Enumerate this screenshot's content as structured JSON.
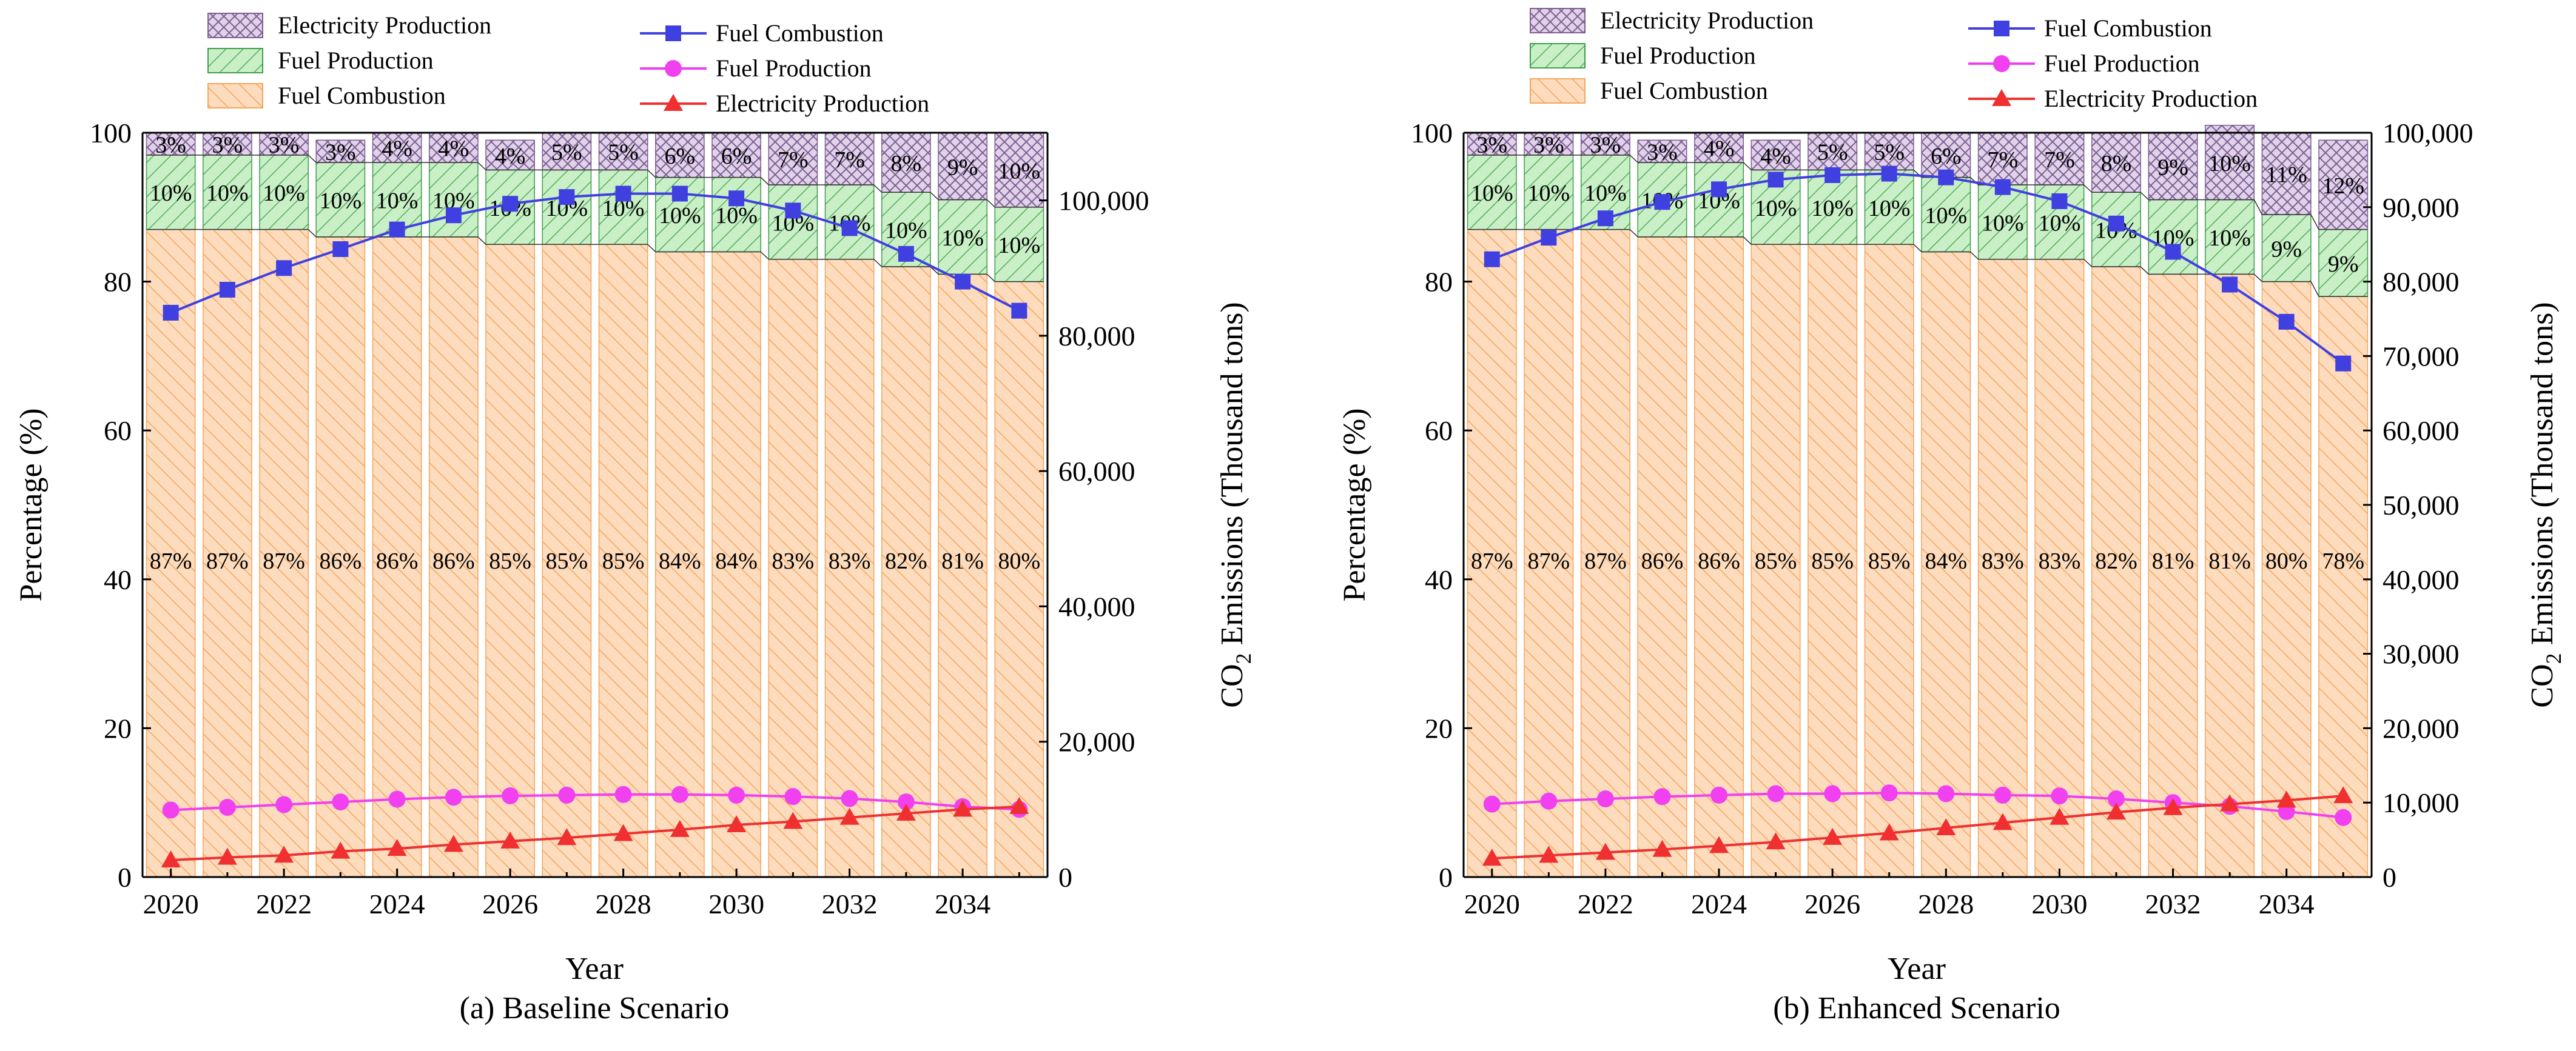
{
  "legend": {
    "bars": [
      "Electricity Production",
      "Fuel Production",
      "Fuel Combustion"
    ],
    "lines": [
      "Fuel Combustion",
      "Fuel Production",
      "Electricity Production"
    ]
  },
  "colors": {
    "combustion_bar": "#FDDCBD",
    "combustion_hatch": "#F5A55E",
    "fuelprod_bar": "#C9EFC6",
    "fuelprod_hatch": "#3E9E4A",
    "elec_bar": "#E0D2E9",
    "elec_hatch": "#7D5E93",
    "combustion_line": "#4040E0",
    "fuelprod_line": "#F040F0",
    "elec_line": "#F03030",
    "bar_edge": "#000000"
  },
  "chart_data": [
    {
      "type": "bar",
      "title": "(a) Baseline Scenario",
      "xlabel": "Year",
      "ylabel": "Percentage (%)",
      "y2label_pre": "CO",
      "y2label_sub": "2",
      "y2label_post": " Emissions (Thousand tons)",
      "ylim": [
        0,
        100
      ],
      "y2lim": [
        0,
        110000
      ],
      "yticks": [
        0,
        20,
        40,
        60,
        80,
        100
      ],
      "y2ticks": [
        0,
        20000,
        40000,
        60000,
        80000,
        100000
      ],
      "y2tick_labels": [
        "0",
        "20,000",
        "40,000",
        "60,000",
        "80,000",
        "100,000"
      ],
      "xtick_labels": [
        "2020",
        "2022",
        "2024",
        "2026",
        "2028",
        "2030",
        "2032",
        "2034"
      ],
      "categories": [
        2020,
        2021,
        2022,
        2023,
        2024,
        2025,
        2026,
        2027,
        2028,
        2029,
        2030,
        2031,
        2032,
        2033,
        2034,
        2035
      ],
      "stacked_percent": [
        {
          "name": "Fuel Combustion",
          "values": [
            87,
            87,
            87,
            86,
            86,
            86,
            85,
            85,
            85,
            84,
            84,
            83,
            83,
            82,
            81,
            80
          ],
          "labels": [
            "87%",
            "87%",
            "87%",
            "86%",
            "86%",
            "86%",
            "85%",
            "85%",
            "85%",
            "84%",
            "84%",
            "83%",
            "83%",
            "82%",
            "81%",
            "80%"
          ]
        },
        {
          "name": "Fuel Production",
          "values": [
            10,
            10,
            10,
            10,
            10,
            10,
            10,
            10,
            10,
            10,
            10,
            10,
            10,
            10,
            10,
            10
          ],
          "labels": [
            "10%",
            "10%",
            "10%",
            "10%",
            "10%",
            "10%",
            "10%",
            "10%",
            "10%",
            "10%",
            "10%",
            "10%",
            "10%",
            "10%",
            "10%",
            "10%"
          ]
        },
        {
          "name": "Electricity Production",
          "values": [
            3,
            3,
            3,
            3,
            4,
            4,
            4,
            5,
            5,
            6,
            6,
            7,
            7,
            8,
            9,
            10
          ],
          "labels": [
            "3%",
            "3%",
            "3%",
            "3%",
            "4%",
            "4%",
            "4%",
            "5%",
            "5%",
            "6%",
            "6%",
            "7%",
            "7%",
            "8%",
            "9%",
            "10%"
          ]
        }
      ],
      "series": [
        {
          "name": "Fuel Combustion",
          "marker": "square",
          "values": [
            83400,
            86800,
            90000,
            92800,
            95700,
            97800,
            99500,
            100500,
            101000,
            101000,
            100300,
            98500,
            95900,
            92100,
            88000,
            83700
          ]
        },
        {
          "name": "Fuel Production",
          "marker": "circle",
          "values": [
            9900,
            10300,
            10700,
            11100,
            11500,
            11800,
            12000,
            12100,
            12200,
            12200,
            12100,
            11900,
            11600,
            11100,
            10400,
            10000
          ]
        },
        {
          "name": "Electricity Production",
          "marker": "triangle",
          "values": [
            2500,
            2900,
            3200,
            3800,
            4200,
            4800,
            5300,
            5800,
            6400,
            7000,
            7700,
            8200,
            8800,
            9400,
            10000,
            10400
          ]
        }
      ]
    },
    {
      "type": "bar",
      "title": "(b) Enhanced Scenario",
      "xlabel": "Year",
      "ylabel": "Percentage (%)",
      "y2label_pre": "CO",
      "y2label_sub": "2",
      "y2label_post": " Emissions (Thousand tons)",
      "ylim": [
        0,
        100
      ],
      "y2lim": [
        0,
        100000
      ],
      "yticks": [
        0,
        20,
        40,
        60,
        80,
        100
      ],
      "y2ticks": [
        0,
        10000,
        20000,
        30000,
        40000,
        50000,
        60000,
        70000,
        80000,
        90000,
        100000
      ],
      "y2tick_labels": [
        "0",
        "10,000",
        "20,000",
        "30,000",
        "40,000",
        "50,000",
        "60,000",
        "70,000",
        "80,000",
        "90,000",
        "100,000"
      ],
      "xtick_labels": [
        "2020",
        "2022",
        "2024",
        "2026",
        "2028",
        "2030",
        "2032",
        "2034"
      ],
      "categories": [
        2020,
        2021,
        2022,
        2023,
        2024,
        2025,
        2026,
        2027,
        2028,
        2029,
        2030,
        2031,
        2032,
        2033,
        2034,
        2035
      ],
      "stacked_percent": [
        {
          "name": "Fuel Combustion",
          "values": [
            87,
            87,
            87,
            86,
            86,
            85,
            85,
            85,
            84,
            83,
            83,
            82,
            81,
            81,
            80,
            78
          ],
          "labels": [
            "87%",
            "87%",
            "87%",
            "86%",
            "86%",
            "85%",
            "85%",
            "85%",
            "84%",
            "83%",
            "83%",
            "82%",
            "81%",
            "81%",
            "80%",
            "78%"
          ]
        },
        {
          "name": "Fuel Production",
          "values": [
            10,
            10,
            10,
            10,
            10,
            10,
            10,
            10,
            10,
            10,
            10,
            10,
            10,
            10,
            9,
            9
          ],
          "labels": [
            "10%",
            "10%",
            "10%",
            "10%",
            "10%",
            "10%",
            "10%",
            "10%",
            "10%",
            "10%",
            "10%",
            "10%",
            "10%",
            "10%",
            "9%",
            "9%"
          ]
        },
        {
          "name": "Electricity Production",
          "values": [
            3,
            3,
            3,
            3,
            4,
            4,
            5,
            5,
            6,
            7,
            7,
            8,
            9,
            10,
            11,
            12
          ],
          "labels": [
            "3%",
            "3%",
            "3%",
            "3%",
            "4%",
            "4%",
            "5%",
            "5%",
            "6%",
            "7%",
            "7%",
            "8%",
            "9%",
            "10%",
            "11%",
            "12%"
          ]
        }
      ],
      "series": [
        {
          "name": "Fuel Combustion",
          "marker": "square",
          "values": [
            83000,
            85900,
            88500,
            90700,
            92400,
            93700,
            94300,
            94500,
            94000,
            92700,
            90800,
            87800,
            84000,
            79600,
            74600,
            69000
          ]
        },
        {
          "name": "Fuel Production",
          "marker": "circle",
          "values": [
            9800,
            10200,
            10500,
            10800,
            11000,
            11200,
            11200,
            11300,
            11200,
            11000,
            10900,
            10500,
            10000,
            9500,
            8800,
            8000
          ]
        },
        {
          "name": "Electricity Production",
          "marker": "triangle",
          "values": [
            2500,
            2900,
            3300,
            3700,
            4200,
            4700,
            5300,
            5900,
            6600,
            7300,
            8000,
            8700,
            9300,
            9800,
            10300,
            10900
          ]
        }
      ]
    }
  ]
}
